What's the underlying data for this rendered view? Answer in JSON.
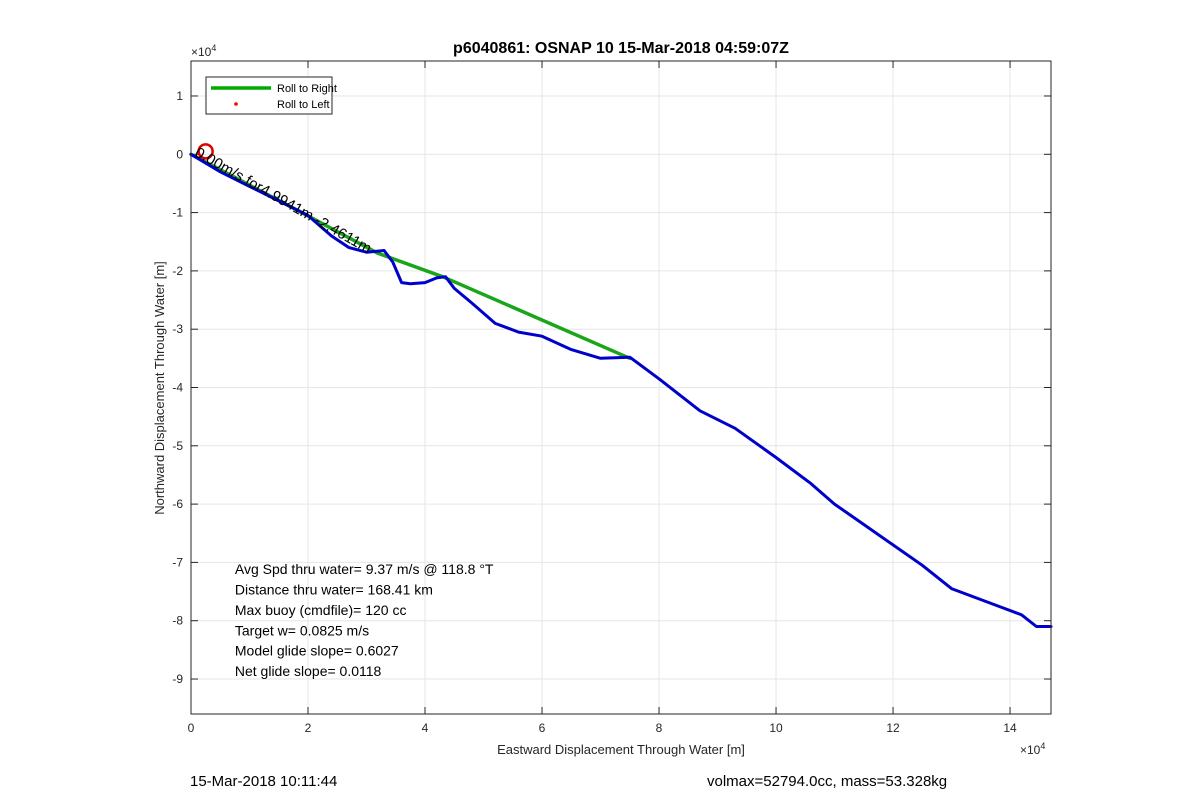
{
  "footer": {
    "left": "15-Mar-2018 10:11:44",
    "right": "volmax=52794.0cc, mass=53.328kg"
  },
  "chart_data": {
    "type": "line",
    "title": "p6040861: OSNAP 10 15-Mar-2018 04:59:07Z",
    "xlabel": "Eastward Displacement Through Water [m]",
    "ylabel": "Northward Displacement Through Water [m]",
    "x_exponent_label": "×10",
    "x_exponent_power": "4",
    "y_exponent_label": "×10",
    "y_exponent_power": "4",
    "xlim": [
      0,
      14.7
    ],
    "ylim": [
      -9.6,
      1.6
    ],
    "x_scale_note": "values in units of 10^4 m",
    "xticks": [
      0,
      2,
      4,
      6,
      8,
      10,
      12,
      14
    ],
    "yticks": [
      1,
      0,
      -1,
      -2,
      -3,
      -4,
      -5,
      -6,
      -7,
      -8,
      -9
    ],
    "grid": true,
    "legend_position": "top-left",
    "legend": [
      {
        "label": "Roll to Right",
        "color": "#00aa00",
        "marker": "line"
      },
      {
        "label": "Roll to Left",
        "color": "#ff0000",
        "marker": "dot"
      }
    ],
    "series": [
      {
        "name": "Roll to Right",
        "color": "#1aa51a",
        "x": [
          0,
          1.8,
          3.2,
          4.3,
          7.5
        ],
        "y": [
          0,
          -0.95,
          -1.7,
          -2.1,
          -3.5
        ]
      },
      {
        "color": "#0000cc",
        "x": [
          0,
          0.5,
          1.0,
          1.5,
          2.0,
          2.4,
          2.7,
          3.0,
          3.3,
          3.45,
          3.6,
          3.75,
          4.0,
          4.2,
          4.35,
          4.5,
          4.8,
          5.2,
          5.6,
          6.0,
          6.5,
          7.0,
          7.5,
          8.0,
          8.7,
          9.3,
          10.0,
          10.6,
          11.0,
          11.5,
          12.0,
          12.5,
          13.0,
          13.4,
          13.8,
          14.2,
          14.45,
          14.7
        ],
        "y": [
          0,
          -0.3,
          -0.55,
          -0.8,
          -1.05,
          -1.4,
          -1.6,
          -1.68,
          -1.65,
          -1.85,
          -2.2,
          -2.22,
          -2.2,
          -2.12,
          -2.1,
          -2.3,
          -2.55,
          -2.9,
          -3.05,
          -3.12,
          -3.35,
          -3.5,
          -3.48,
          -3.85,
          -4.4,
          -4.7,
          -5.2,
          -5.65,
          -6.0,
          -6.35,
          -6.7,
          -7.05,
          -7.45,
          -7.6,
          -7.75,
          -7.9,
          -8.1,
          -8.1
        ]
      }
    ],
    "markers": [
      {
        "type": "circle",
        "x": 0.25,
        "y": 0.05,
        "color": "#dd0000"
      }
    ],
    "annotations": [
      {
        "text": "Avg Spd thru water=  9.37 m/s @ 118.8 °T",
        "x": 0.75,
        "y": -7.2
      },
      {
        "text": "Distance thru water= 168.41 km",
        "x": 0.75,
        "y": -7.55
      },
      {
        "text": "Max buoy (cmdfile)= 120 cc",
        "x": 0.75,
        "y": -7.9
      },
      {
        "text": "Target w= 0.0825 m/s",
        "x": 0.75,
        "y": -8.25
      },
      {
        "text": "Model glide slope= 0.6027",
        "x": 0.75,
        "y": -8.6
      },
      {
        "text": "Net glide slope= 0.0118",
        "x": 0.75,
        "y": -8.95
      }
    ],
    "overlay_text": [
      {
        "text": "0.00m/s for4.9941m -2.4611m",
        "x": 0.05,
        "y": -0.02
      }
    ]
  }
}
